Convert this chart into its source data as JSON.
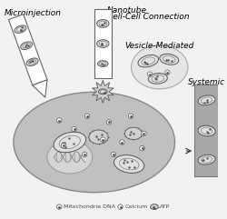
{
  "bg_color": "#f2f2f2",
  "cell_color": "#c0c0c0",
  "cell_edge": "#888888",
  "mito_fill": "#e0e0e0",
  "mito_edge": "#555555",
  "labels": {
    "microinjection": "Microinjection",
    "nanotube_line1": "Nanotube",
    "nanotube_line2": "Cell-Cell Connection",
    "vesicle": "Vesicle-Mediated",
    "systemic": "Systemic"
  },
  "syringe_color": "#ffffff",
  "syringe_edge": "#666666",
  "nanotube_color": "#ffffff",
  "nanotube_edge": "#666666",
  "systemic_box_color": "#a8a8a8",
  "systemic_box_edge": "#777777",
  "nucleus_color": "#d5d5d5",
  "nucleus_edge": "#999999",
  "dot_color": "#555555",
  "arrow_color": "#333333",
  "font_size_label": 6.5,
  "font_size_legend": 4.5,
  "vesicle_ell_color": "#e5e5e5",
  "vesicle_ell_edge": "#aaaaaa"
}
